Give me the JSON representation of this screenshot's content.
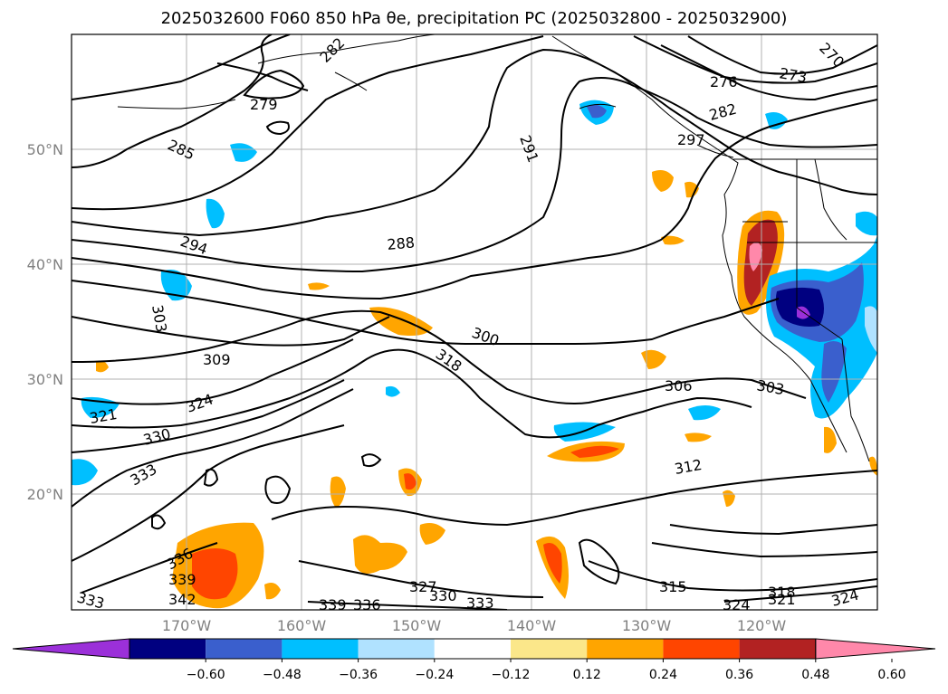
{
  "title": "2025032600 F060 850 hPa θe, precipitation PC (2025032800 - 2025032900)",
  "map": {
    "lon_labels": [
      "170°W",
      "160°W",
      "150°W",
      "140°W",
      "130°W",
      "120°W"
    ],
    "lat_labels": [
      "50°N",
      "40°N",
      "30°N",
      "20°N"
    ],
    "contour_labels": [
      "279",
      "282",
      "285",
      "288",
      "291",
      "294",
      "297",
      "300",
      "303",
      "306",
      "309",
      "312",
      "315",
      "318",
      "321",
      "324",
      "327",
      "330",
      "333",
      "336",
      "339",
      "342",
      "273",
      "276",
      "270"
    ]
  },
  "colorbar": {
    "ticks": [
      "−0.60",
      "−0.48",
      "−0.36",
      "−0.24",
      "−0.12",
      "0.12",
      "0.24",
      "0.36",
      "0.48",
      "0.60"
    ],
    "colors": [
      "#9b30d9",
      "#000080",
      "#3a5fcd",
      "#00bfff",
      "#b0e2ff",
      "#ffffff",
      "#fbe78a",
      "#ffa500",
      "#ff4500",
      "#b22222",
      "#ff88aa"
    ]
  }
}
